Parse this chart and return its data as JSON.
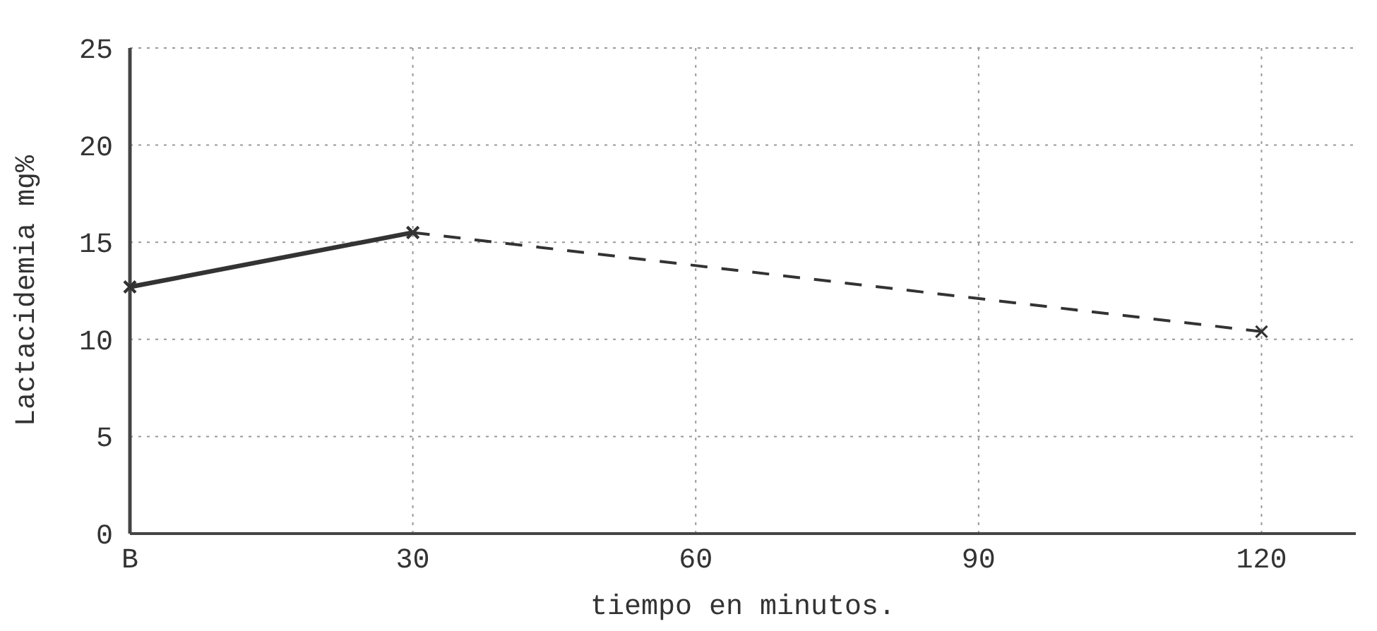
{
  "chart_data": {
    "type": "line",
    "xlabel": "tiempo en minutos.",
    "ylabel": "Lactacidemia mg%",
    "xlim": [
      0,
      130
    ],
    "xticks": [
      {
        "value": 0,
        "label": "B"
      },
      30,
      60,
      90,
      120
    ],
    "ylim": [
      0,
      25
    ],
    "yticks": [
      0,
      5,
      10,
      15,
      20,
      25
    ],
    "grid": true,
    "marker": "cross",
    "series": [
      {
        "color": "#333333",
        "x": [
          0,
          30
        ],
        "values": [
          12.7,
          15.5
        ],
        "line_style": "solid"
      },
      {
        "color": "#333333",
        "x": [
          30,
          120
        ],
        "values": [
          15.5,
          10.4
        ],
        "line_style": "dashed"
      }
    ]
  }
}
